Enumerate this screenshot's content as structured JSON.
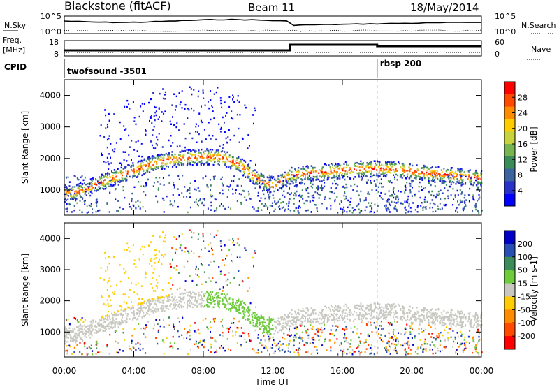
{
  "header": {
    "title": "Blackstone (fitACF)",
    "beam": "Beam 11",
    "date": "18/May/2014"
  },
  "status_panels": {
    "nsky_label": "N.Sky",
    "nsearch_label": "N.Search",
    "nsky_ticks": [
      "10^5",
      "10^0"
    ],
    "nsearch_ticks": [
      "10^5",
      "10^0"
    ],
    "freq_label_1": "Freq.",
    "freq_label_2": "[MHz]",
    "freq_ticks": [
      "18",
      "8"
    ],
    "nave_label": "Nave",
    "nave_ticks": [
      "60",
      "0"
    ],
    "cpid_label": "CPID",
    "cpid_entries": [
      {
        "name": "twofsound",
        "id": "-3501",
        "start_ut": 0
      },
      {
        "name": "rbsp",
        "id": "200",
        "start_ut": 18.0
      }
    ],
    "freq_step_ut": 13.0
  },
  "chart_data": [
    {
      "type": "heatmap",
      "name": "power",
      "ylabel": "Slant Range [km]",
      "xlabel": "",
      "ylim": [
        200,
        4500
      ],
      "yticks": [
        1000,
        2000,
        3000,
        4000
      ],
      "colorbar": {
        "label": "Power [dB]",
        "ticks": [
          "28",
          "24",
          "20",
          "16",
          "12",
          "8",
          "4"
        ],
        "colors": [
          "#ff0000",
          "#ff4a00",
          "#ff8c00",
          "#ffcc00",
          "#c8d23c",
          "#78b450",
          "#3c8c5a",
          "#3c64a0",
          "#2832c8",
          "#0000ff"
        ]
      },
      "scatter_band_km": [
        [
          0,
          900
        ],
        [
          1,
          1000
        ],
        [
          2,
          1250
        ],
        [
          3,
          1450
        ],
        [
          4,
          1650
        ],
        [
          5,
          1850
        ],
        [
          6,
          1980
        ],
        [
          7,
          2050
        ],
        [
          8,
          2080
        ],
        [
          9,
          2060
        ],
        [
          10,
          1850
        ],
        [
          11,
          1400
        ],
        [
          12,
          1150
        ],
        [
          13,
          1500
        ],
        [
          14,
          1550
        ],
        [
          15,
          1600
        ],
        [
          16,
          1650
        ],
        [
          17,
          1700
        ],
        [
          18,
          1700
        ],
        [
          19,
          1680
        ],
        [
          20,
          1620
        ],
        [
          21,
          1550
        ],
        [
          22,
          1500
        ],
        [
          23,
          1450
        ],
        [
          24,
          1400
        ]
      ]
    },
    {
      "type": "heatmap",
      "name": "velocity",
      "ylabel": "Slant Range [km]",
      "xlabel": "Time UT",
      "ylim": [
        200,
        4500
      ],
      "yticks": [
        1000,
        2000,
        3000,
        4000
      ],
      "colorbar": {
        "label": "Velocity [m s-1]",
        "ticks": [
          "200",
          "100",
          "50",
          "15",
          "-15",
          "-50",
          "-100",
          "-200"
        ],
        "colors": [
          "#0000c8",
          "#2850b4",
          "#3c8c5a",
          "#6ecb3c",
          "#c8c8c0",
          "#ffcc00",
          "#ff8c00",
          "#ff4a00",
          "#ff0000"
        ]
      }
    }
  ],
  "x_axis": {
    "ticks": [
      "00:00",
      "04:00",
      "08:00",
      "12:00",
      "16:00",
      "20:00",
      "00:00"
    ],
    "tick_hours": [
      0,
      4,
      8,
      12,
      16,
      20,
      24
    ],
    "label": "Time UT"
  }
}
